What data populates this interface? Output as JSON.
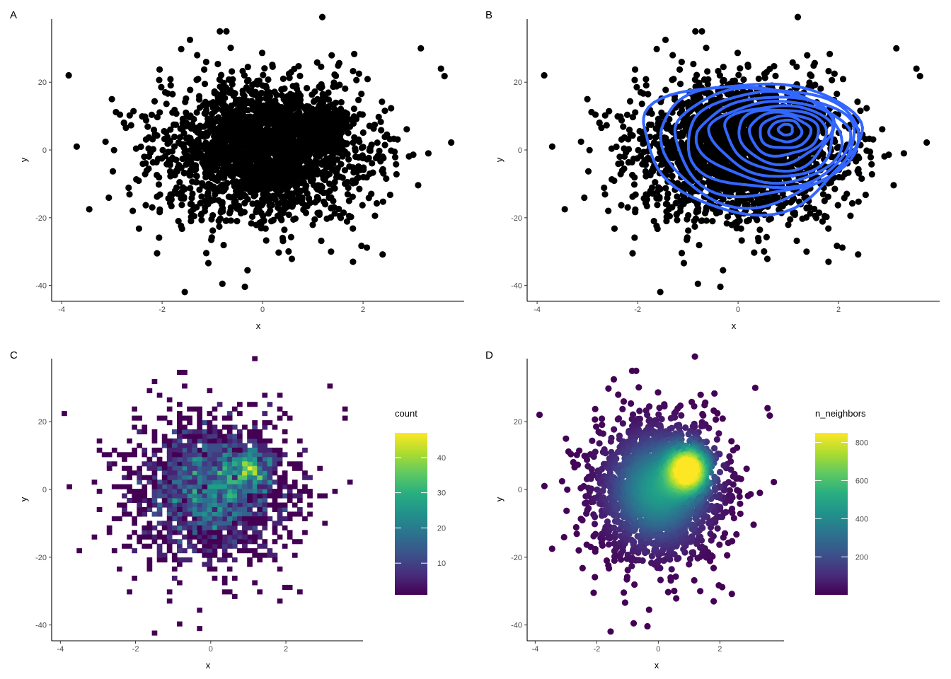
{
  "chart_data": [
    {
      "panel_label": "A",
      "type": "scatter",
      "xlabel": "x",
      "ylabel": "y",
      "xlim": [
        -4.1,
        3.9
      ],
      "ylim": [
        -43,
        38
      ],
      "xticks": [
        "-4",
        "-2",
        "0",
        "2"
      ],
      "yticks": [
        "-40",
        "-20",
        "0",
        "20"
      ],
      "distribution": {
        "modes": [
          {
            "mean_x": 0.0,
            "mean_y": 0.0,
            "sd_x": 1.0,
            "sd_y": 10.0,
            "weight": 0.85
          },
          {
            "mean_x": 1.0,
            "mean_y": 6.0,
            "sd_x": 0.35,
            "sd_y": 3.5,
            "weight": 0.15
          }
        ]
      },
      "point_color": "#000000",
      "outlier_points": [
        {
          "x": -0.72,
          "y": 35
        },
        {
          "x": -0.85,
          "y": 35
        },
        {
          "x": 3.15,
          "y": 30
        },
        {
          "x": 3.55,
          "y": 24
        },
        {
          "x": -3.7,
          "y": 1
        },
        {
          "x": -3.45,
          "y": -17.5
        },
        {
          "x": -0.8,
          "y": -39.5
        },
        {
          "x": 1.8,
          "y": -33
        },
        {
          "x": -0.3,
          "y": -35.5
        },
        {
          "x": -2.1,
          "y": -30.5
        },
        {
          "x": -3.0,
          "y": 15
        },
        {
          "x": 3.3,
          "y": -1
        }
      ]
    },
    {
      "panel_label": "B",
      "type": "scatter",
      "xlabel": "x",
      "ylabel": "y",
      "xlim": [
        -4.1,
        3.9
      ],
      "ylim": [
        -43,
        38
      ],
      "xticks": [
        "-4",
        "-2",
        "0",
        "2"
      ],
      "yticks": [
        "-40",
        "-20",
        "0",
        "20"
      ],
      "point_color": "#000000",
      "overlay": "density_contours",
      "contour_color": "#3366FF",
      "contour_center": {
        "x": 0.95,
        "y": 6.0
      },
      "contour_levels": 12
    },
    {
      "panel_label": "C",
      "type": "heatmap",
      "xlabel": "x",
      "ylabel": "y",
      "xlim": [
        -4.1,
        3.9
      ],
      "ylim": [
        -43,
        38
      ],
      "xticks": [
        "-4",
        "-2",
        "0",
        "2"
      ],
      "yticks": [
        "-40",
        "-20",
        "0",
        "20"
      ],
      "bins": 100,
      "colorscale": "viridis",
      "legend": {
        "title": "count",
        "ticks": [
          "10",
          "20",
          "30",
          "40"
        ],
        "tick_values": [
          10,
          20,
          30,
          40
        ],
        "min": 1,
        "max": 47
      }
    },
    {
      "panel_label": "D",
      "type": "scatter",
      "xlabel": "x",
      "ylabel": "y",
      "xlim": [
        -4.1,
        3.9
      ],
      "ylim": [
        -43,
        38
      ],
      "xticks": [
        "-4",
        "-2",
        "0",
        "2"
      ],
      "yticks": [
        "-40",
        "-20",
        "0",
        "20"
      ],
      "color_by": "n_neighbors",
      "colorscale": "viridis",
      "legend": {
        "title": "n_neighbors",
        "ticks": [
          "200",
          "400",
          "600",
          "800"
        ],
        "tick_values": [
          200,
          400,
          600,
          800
        ],
        "min": 1,
        "max": 850
      }
    }
  ]
}
